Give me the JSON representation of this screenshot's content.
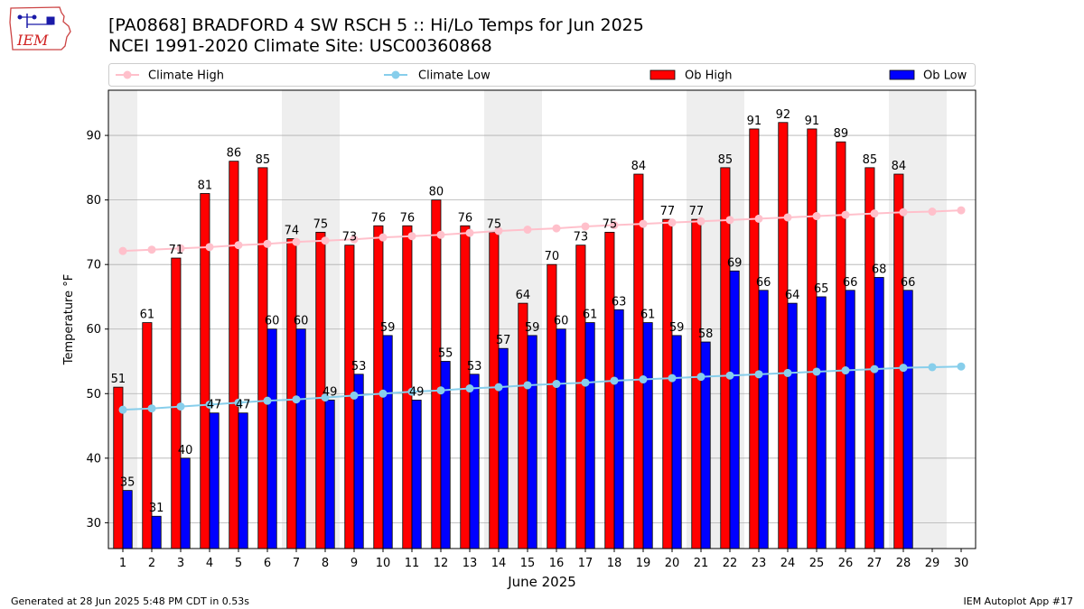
{
  "header": {
    "title_line1": "[PA0868] BRADFORD 4 SW RSCH 5 :: Hi/Lo Temps for Jun 2025",
    "title_line2": "NCEI 1991-2020 Climate Site: USC00360868",
    "logo_text": "IEM"
  },
  "footer": {
    "left": "Generated at 28 Jun 2025 5:48 PM CDT in 0.53s",
    "right": "IEM Autoplot App #17"
  },
  "colors": {
    "ob_high": "#ff0000",
    "ob_low": "#0000ff",
    "climate_high": "#ffc0cb",
    "climate_low": "#87ceeb",
    "weekend_band": "#eeeeee",
    "grid": "#b0b0b0"
  },
  "chart_data": {
    "type": "bar",
    "xlabel": "June 2025",
    "ylabel": "Temperature °F",
    "ylim": [
      26,
      97
    ],
    "yticks": [
      30,
      40,
      50,
      60,
      70,
      80,
      90
    ],
    "grid": "horizontal",
    "legend_placement": "top",
    "weekend_days": [
      1,
      7,
      8,
      14,
      15,
      21,
      22,
      28,
      29
    ],
    "categories": [
      "1",
      "2",
      "3",
      "4",
      "5",
      "6",
      "7",
      "8",
      "9",
      "10",
      "11",
      "12",
      "13",
      "14",
      "15",
      "16",
      "17",
      "18",
      "19",
      "20",
      "21",
      "22",
      "23",
      "24",
      "25",
      "26",
      "27",
      "28",
      "29",
      "30"
    ],
    "series": [
      {
        "name": "Climate High",
        "kind": "line",
        "values": [
          72.1,
          72.3,
          72.5,
          72.7,
          73.0,
          73.2,
          73.5,
          73.7,
          73.9,
          74.2,
          74.4,
          74.6,
          74.9,
          75.2,
          75.4,
          75.6,
          75.9,
          76.1,
          76.3,
          76.5,
          76.7,
          76.9,
          77.1,
          77.3,
          77.5,
          77.7,
          77.9,
          78.1,
          78.2,
          78.4
        ]
      },
      {
        "name": "Climate Low",
        "kind": "line",
        "values": [
          47.5,
          47.7,
          48.0,
          48.3,
          48.6,
          48.9,
          49.1,
          49.4,
          49.7,
          50.0,
          50.3,
          50.5,
          50.8,
          51.0,
          51.3,
          51.5,
          51.7,
          52.0,
          52.2,
          52.4,
          52.6,
          52.8,
          53.0,
          53.2,
          53.4,
          53.6,
          53.8,
          54.0,
          54.1,
          54.2
        ]
      },
      {
        "name": "Ob High",
        "kind": "bar",
        "values": [
          51,
          61,
          71,
          81,
          86,
          85,
          74,
          75,
          73,
          76,
          76,
          80,
          76,
          75,
          64,
          70,
          73,
          75,
          84,
          77,
          77,
          85,
          91,
          92,
          91,
          89,
          85,
          84,
          null,
          null
        ]
      },
      {
        "name": "Ob Low",
        "kind": "bar",
        "values": [
          35,
          31,
          40,
          47,
          47,
          60,
          60,
          49,
          53,
          59,
          49,
          55,
          53,
          57,
          59,
          60,
          61,
          63,
          61,
          59,
          58,
          69,
          66,
          64,
          65,
          66,
          68,
          66,
          null,
          null
        ]
      }
    ]
  }
}
